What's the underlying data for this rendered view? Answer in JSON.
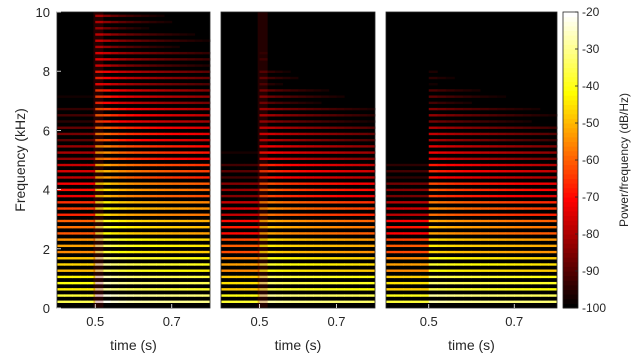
{
  "chart_data": {
    "type": "heatmap",
    "colormap": "hot",
    "ylabel": "Frequency (kHz)",
    "ylim": [
      0,
      10
    ],
    "yticks": [
      "0",
      "2",
      "4",
      "6",
      "8",
      "10"
    ],
    "xlim": [
      0.4,
      0.8
    ],
    "colorbar": {
      "label": "Power/frequency (dB/Hz)",
      "range": [
        -100,
        -20
      ],
      "ticks": [
        "-20",
        "-30",
        "-40",
        "-50",
        "-60",
        "-70",
        "-80",
        "-90",
        "-100"
      ]
    },
    "panels": [
      {
        "xlabel": "time (s)",
        "xticks": [
          "0.5",
          "0.7"
        ],
        "onset_s": 0.49,
        "harmonic_spacing_khz": 0.21,
        "peak_level_db": -25,
        "high_freq_rolloff_db_per_khz": 6.5,
        "onset_burst_db": 12,
        "decay_db_per_s": 40,
        "floor_db": -100
      },
      {
        "xlabel": "time (s)",
        "xticks": [
          "0.5",
          "0.7"
        ],
        "onset_s": 0.49,
        "harmonic_spacing_khz": 0.21,
        "peak_level_db": -27,
        "high_freq_rolloff_db_per_khz": 8.5,
        "onset_burst_db": 4,
        "decay_db_per_s": 45,
        "floor_db": -100
      },
      {
        "xlabel": "time (s)",
        "xticks": [
          "0.5",
          "0.7"
        ],
        "onset_s": 0.49,
        "harmonic_spacing_khz": 0.21,
        "peak_level_db": -26,
        "high_freq_rolloff_db_per_khz": 9,
        "onset_burst_db": 2,
        "decay_db_per_s": 45,
        "floor_db": -100
      }
    ]
  }
}
